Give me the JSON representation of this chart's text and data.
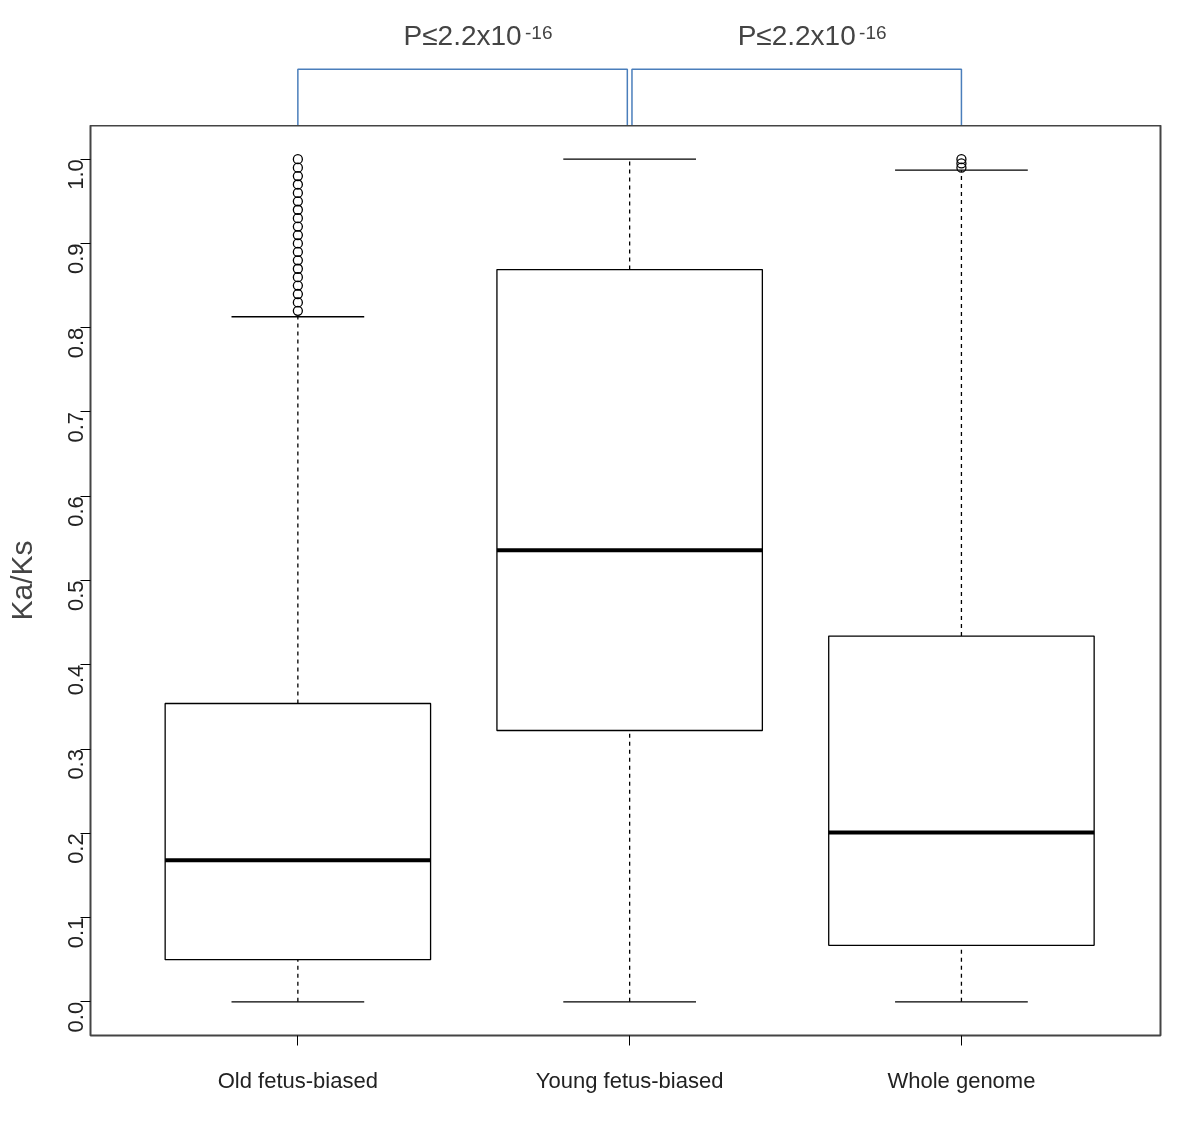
{
  "chart_data": {
    "type": "box",
    "ylabel": "Ka/Ks",
    "categories": [
      "Old fetus-biased",
      "Young fetus-biased",
      "Whole genome"
    ],
    "boxes": [
      {
        "low": 0.0,
        "q1": 0.05,
        "median": 0.168,
        "q3": 0.354,
        "high": 0.813,
        "outliers": [
          0.82,
          0.83,
          0.84,
          0.85,
          0.86,
          0.87,
          0.88,
          0.89,
          0.9,
          0.91,
          0.92,
          0.93,
          0.94,
          0.95,
          0.96,
          0.97,
          0.98,
          0.99,
          1.0
        ]
      },
      {
        "low": 0.0,
        "q1": 0.322,
        "median": 0.536,
        "q3": 0.869,
        "high": 1.0
      },
      {
        "low": 0.0,
        "q1": 0.067,
        "median": 0.201,
        "q3": 0.434,
        "high": 0.987,
        "outliers": [
          0.99,
          0.995,
          1.0
        ]
      }
    ],
    "ylim": [
      -0.04,
      1.04
    ],
    "yticks": [
      {
        "value": 0,
        "label": "0.0"
      },
      {
        "value": 0.1,
        "label": "0.1"
      },
      {
        "value": 0.2,
        "label": "0.2"
      },
      {
        "value": 0.3,
        "label": "0.3"
      },
      {
        "value": 0.4,
        "label": "0.4"
      },
      {
        "value": 0.5,
        "label": "0.5"
      },
      {
        "value": 0.6,
        "label": "0.6"
      },
      {
        "value": 0.7,
        "label": "0.7"
      },
      {
        "value": 0.8,
        "label": "0.8"
      },
      {
        "value": 0.9,
        "label": "0.9"
      },
      {
        "value": 1,
        "label": "1.0"
      }
    ],
    "grid": false,
    "color": "#000000",
    "annotations": [
      "P≤2.2x10$^{-16}$",
      "P≤2.2x10$^{-16}$"
    ]
  }
}
